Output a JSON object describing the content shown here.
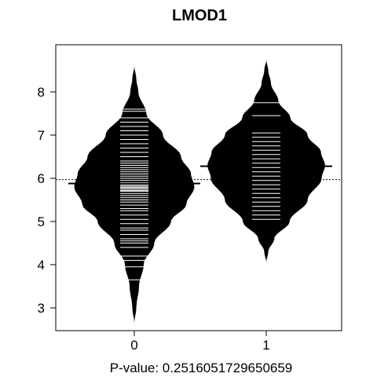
{
  "chart_data": {
    "type": "beanplot",
    "title": "LMOD1",
    "xlabel": "P-value: 0.251605172965065​9",
    "categories": [
      "0",
      "1"
    ],
    "ylim": [
      2.5,
      9.0
    ],
    "yticks": [
      3,
      4,
      5,
      6,
      7,
      8
    ],
    "overall_reference": 5.97,
    "grid": false,
    "series": [
      {
        "category": "0",
        "median": 5.88,
        "range": [
          2.65,
          8.6
        ],
        "density": [
          [
            2.65,
            0.0
          ],
          [
            3.0,
            0.03
          ],
          [
            3.5,
            0.07
          ],
          [
            4.0,
            0.14
          ],
          [
            4.5,
            0.3
          ],
          [
            5.0,
            0.55
          ],
          [
            5.4,
            0.78
          ],
          [
            5.8,
            0.9
          ],
          [
            6.1,
            0.85
          ],
          [
            6.5,
            0.7
          ],
          [
            7.0,
            0.43
          ],
          [
            7.5,
            0.18
          ],
          [
            8.0,
            0.06
          ],
          [
            8.3,
            0.03
          ],
          [
            8.6,
            0.0
          ]
        ],
        "observations": [
          3.65,
          3.95,
          4.1,
          4.2,
          4.4,
          4.5,
          4.55,
          4.6,
          4.7,
          4.8,
          4.85,
          4.95,
          5.05,
          5.15,
          5.25,
          5.3,
          5.38,
          5.45,
          5.5,
          5.55,
          5.6,
          5.65,
          5.7,
          5.72,
          5.75,
          5.78,
          5.8,
          5.83,
          5.86,
          5.9,
          5.95,
          6.0,
          6.05,
          6.1,
          6.15,
          6.2,
          6.25,
          6.3,
          6.35,
          6.4,
          6.5,
          6.6,
          6.7,
          6.8,
          6.9,
          7.0,
          7.1,
          7.2,
          7.3,
          7.4,
          7.55,
          7.6
        ]
      },
      {
        "category": "1",
        "median": 6.28,
        "range": [
          4.05,
          8.75
        ],
        "density": [
          [
            4.05,
            0.0
          ],
          [
            4.3,
            0.03
          ],
          [
            4.6,
            0.12
          ],
          [
            5.0,
            0.35
          ],
          [
            5.5,
            0.62
          ],
          [
            6.0,
            0.83
          ],
          [
            6.3,
            0.88
          ],
          [
            6.6,
            0.82
          ],
          [
            7.0,
            0.62
          ],
          [
            7.4,
            0.36
          ],
          [
            7.8,
            0.18
          ],
          [
            8.2,
            0.07
          ],
          [
            8.5,
            0.03
          ],
          [
            8.75,
            0.0
          ]
        ],
        "observations": [
          5.05,
          5.15,
          5.25,
          5.35,
          5.45,
          5.55,
          5.65,
          5.75,
          5.85,
          5.95,
          6.05,
          6.15,
          6.25,
          6.35,
          6.45,
          6.55,
          6.65,
          6.75,
          6.85,
          6.95,
          7.05,
          7.45,
          7.75
        ]
      }
    ]
  }
}
